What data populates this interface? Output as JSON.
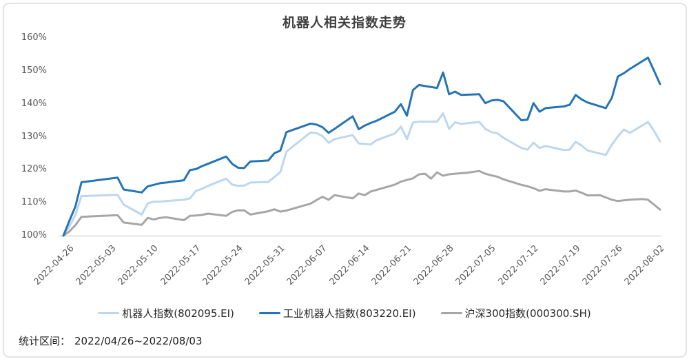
{
  "title": "机器人相关指数走势",
  "caption": {
    "label": "统计区间：",
    "range": "2022/04/26~2022/08/03"
  },
  "colors": {
    "robot_index": "#BDD7EE",
    "industrial_robot_index": "#2474B6",
    "csi300_index": "#A6A6A6",
    "axis_line": "#D9D9D9",
    "axis_text": "#595959",
    "title_text": "#404040"
  },
  "legend": [
    {
      "label": "机器人指数(802095.EI)",
      "color": "#BDD7EE"
    },
    {
      "label": "工业机器人指数(803220.EI)",
      "color": "#2474B6"
    },
    {
      "label": "沪深300指数(000300.SH)",
      "color": "#A6A6A6"
    }
  ],
  "y_axis": {
    "ticks": [
      {
        "label": "160%",
        "value": 160
      },
      {
        "label": "150%",
        "value": 150
      },
      {
        "label": "140%",
        "value": 140
      },
      {
        "label": "130%",
        "value": 130
      },
      {
        "label": "120%",
        "value": 120
      },
      {
        "label": "110%",
        "value": 110
      },
      {
        "label": "100%",
        "value": 100
      }
    ]
  },
  "x_axis": {
    "ticks": [
      {
        "label": "2022-04-26",
        "day": 0
      },
      {
        "label": "2022-05-03",
        "day": 7
      },
      {
        "label": "2022-05-10",
        "day": 14
      },
      {
        "label": "2022-05-17",
        "day": 21
      },
      {
        "label": "2022-05-24",
        "day": 28
      },
      {
        "label": "2022-05-31",
        "day": 35
      },
      {
        "label": "2022-06-07",
        "day": 42
      },
      {
        "label": "2022-06-14",
        "day": 49
      },
      {
        "label": "2022-06-21",
        "day": 56
      },
      {
        "label": "2022-06-28",
        "day": 63
      },
      {
        "label": "2022-07-05",
        "day": 70
      },
      {
        "label": "2022-07-12",
        "day": 77
      },
      {
        "label": "2022-07-19",
        "day": 84
      },
      {
        "label": "2022-07-26",
        "day": 91
      },
      {
        "label": "2022-08-02",
        "day": 98
      }
    ]
  },
  "chart_data": {
    "type": "line",
    "title": "机器人相关指数走势",
    "x_unit": "calendar days since 2022-04-26 (last point 2022-08-03 = day 99)",
    "x_range": [
      0,
      99
    ],
    "ylim": [
      100,
      160
    ],
    "y_unit": "percent of 2022-04-26 value",
    "grid": false,
    "legend_position": "bottom",
    "series": [
      {
        "name": "机器人指数(802095.EI)",
        "color": "#BDD7EE",
        "points": [
          [
            0,
            100
          ],
          [
            1,
            102.8
          ],
          [
            2,
            106.3
          ],
          [
            3,
            112.0
          ],
          [
            9,
            112.4
          ],
          [
            10,
            109.4
          ],
          [
            13,
            106.4
          ],
          [
            14,
            109.8
          ],
          [
            15,
            110.3
          ],
          [
            16,
            110.3
          ],
          [
            17,
            110.5
          ],
          [
            20,
            110.9
          ],
          [
            21,
            111.3
          ],
          [
            22,
            113.6
          ],
          [
            23,
            114.2
          ],
          [
            24,
            115.1
          ],
          [
            27,
            117.3
          ],
          [
            28,
            115.5
          ],
          [
            29,
            115.1
          ],
          [
            30,
            115.2
          ],
          [
            31,
            116.1
          ],
          [
            34,
            116.3
          ],
          [
            35,
            117.8
          ],
          [
            36,
            119.3
          ],
          [
            37,
            125.5
          ],
          [
            41,
            131.3
          ],
          [
            42,
            131.1
          ],
          [
            43,
            130.2
          ],
          [
            44,
            128.2
          ],
          [
            45,
            129.3
          ],
          [
            48,
            130.5
          ],
          [
            49,
            128.0
          ],
          [
            50,
            127.8
          ],
          [
            51,
            127.7
          ],
          [
            52,
            129.0
          ],
          [
            55,
            131.0
          ],
          [
            56,
            133.1
          ],
          [
            57,
            129.3
          ],
          [
            58,
            134.3
          ],
          [
            59,
            134.6
          ],
          [
            62,
            134.6
          ],
          [
            63,
            137.1
          ],
          [
            64,
            132.4
          ],
          [
            65,
            134.4
          ],
          [
            66,
            133.9
          ],
          [
            69,
            134.5
          ],
          [
            70,
            132.4
          ],
          [
            71,
            131.4
          ],
          [
            72,
            131.1
          ],
          [
            73,
            129.7
          ],
          [
            76,
            126.6
          ],
          [
            77,
            126.1
          ],
          [
            78,
            128.2
          ],
          [
            79,
            126.6
          ],
          [
            80,
            127.2
          ],
          [
            83,
            126.0
          ],
          [
            84,
            126.1
          ],
          [
            85,
            128.5
          ],
          [
            86,
            127.3
          ],
          [
            87,
            125.8
          ],
          [
            90,
            124.5
          ],
          [
            91,
            127.6
          ],
          [
            92,
            130.1
          ],
          [
            93,
            132.2
          ],
          [
            94,
            131.2
          ],
          [
            97,
            134.5
          ],
          [
            98,
            131.8
          ],
          [
            99,
            128.6
          ]
        ]
      },
      {
        "name": "工业机器人指数(803220.EI)",
        "color": "#2474B6",
        "points": [
          [
            0,
            100
          ],
          [
            1,
            104.5
          ],
          [
            2,
            108.9
          ],
          [
            3,
            116.2
          ],
          [
            9,
            117.6
          ],
          [
            10,
            114.0
          ],
          [
            13,
            113.1
          ],
          [
            14,
            115.0
          ],
          [
            15,
            115.4
          ],
          [
            16,
            115.9
          ],
          [
            17,
            116.1
          ],
          [
            20,
            116.8
          ],
          [
            21,
            119.9
          ],
          [
            22,
            120.2
          ],
          [
            23,
            121.1
          ],
          [
            24,
            121.8
          ],
          [
            27,
            124.0
          ],
          [
            28,
            121.8
          ],
          [
            29,
            120.6
          ],
          [
            30,
            120.5
          ],
          [
            31,
            122.5
          ],
          [
            34,
            122.8
          ],
          [
            35,
            125.0
          ],
          [
            36,
            125.8
          ],
          [
            37,
            131.4
          ],
          [
            41,
            134.0
          ],
          [
            42,
            133.7
          ],
          [
            43,
            132.9
          ],
          [
            44,
            131.2
          ],
          [
            45,
            132.4
          ],
          [
            48,
            136.2
          ],
          [
            49,
            132.3
          ],
          [
            50,
            133.4
          ],
          [
            51,
            134.2
          ],
          [
            52,
            134.9
          ],
          [
            55,
            137.6
          ],
          [
            56,
            139.9
          ],
          [
            57,
            136.4
          ],
          [
            58,
            144.2
          ],
          [
            59,
            145.7
          ],
          [
            62,
            144.8
          ],
          [
            63,
            149.5
          ],
          [
            64,
            142.9
          ],
          [
            65,
            143.7
          ],
          [
            66,
            142.7
          ],
          [
            69,
            142.9
          ],
          [
            70,
            140.2
          ],
          [
            71,
            141.0
          ],
          [
            72,
            141.2
          ],
          [
            73,
            140.8
          ],
          [
            76,
            135.0
          ],
          [
            77,
            135.2
          ],
          [
            78,
            140.2
          ],
          [
            79,
            137.6
          ],
          [
            80,
            138.7
          ],
          [
            83,
            139.2
          ],
          [
            84,
            139.7
          ],
          [
            85,
            142.7
          ],
          [
            86,
            141.3
          ],
          [
            87,
            140.4
          ],
          [
            90,
            138.7
          ],
          [
            91,
            141.8
          ],
          [
            92,
            148.3
          ],
          [
            93,
            149.3
          ],
          [
            94,
            150.6
          ],
          [
            97,
            154.0
          ],
          [
            98,
            150.0
          ],
          [
            99,
            146.0
          ]
        ]
      },
      {
        "name": "沪深300指数(000300.SH)",
        "color": "#A6A6A6",
        "points": [
          [
            0,
            100
          ],
          [
            1,
            101.3
          ],
          [
            2,
            103.2
          ],
          [
            3,
            105.7
          ],
          [
            9,
            106.2
          ],
          [
            10,
            104.0
          ],
          [
            13,
            103.3
          ],
          [
            14,
            105.4
          ],
          [
            15,
            104.9
          ],
          [
            16,
            105.4
          ],
          [
            17,
            105.6
          ],
          [
            20,
            104.7
          ],
          [
            21,
            106.0
          ],
          [
            22,
            106.1
          ],
          [
            23,
            106.3
          ],
          [
            24,
            106.7
          ],
          [
            27,
            106.0
          ],
          [
            28,
            107.2
          ],
          [
            29,
            107.7
          ],
          [
            30,
            107.7
          ],
          [
            31,
            106.4
          ],
          [
            34,
            107.4
          ],
          [
            35,
            108.0
          ],
          [
            36,
            107.3
          ],
          [
            37,
            107.6
          ],
          [
            41,
            109.7
          ],
          [
            42,
            110.8
          ],
          [
            43,
            111.8
          ],
          [
            44,
            110.9
          ],
          [
            45,
            112.3
          ],
          [
            48,
            111.3
          ],
          [
            49,
            112.8
          ],
          [
            50,
            112.3
          ],
          [
            51,
            113.4
          ],
          [
            52,
            113.9
          ],
          [
            55,
            115.5
          ],
          [
            56,
            116.4
          ],
          [
            57,
            116.9
          ],
          [
            58,
            117.4
          ],
          [
            59,
            118.6
          ],
          [
            60,
            118.8
          ],
          [
            61,
            117.3
          ],
          [
            62,
            119.2
          ],
          [
            63,
            118.2
          ],
          [
            64,
            118.6
          ],
          [
            65,
            118.8
          ],
          [
            67,
            119.1
          ],
          [
            69,
            119.6
          ],
          [
            70,
            118.8
          ],
          [
            71,
            118.3
          ],
          [
            72,
            117.9
          ],
          [
            73,
            117.1
          ],
          [
            76,
            115.4
          ],
          [
            77,
            115.0
          ],
          [
            78,
            114.4
          ],
          [
            79,
            113.6
          ],
          [
            80,
            114.1
          ],
          [
            83,
            113.4
          ],
          [
            84,
            113.4
          ],
          [
            85,
            113.7
          ],
          [
            86,
            113.0
          ],
          [
            87,
            112.2
          ],
          [
            89,
            112.3
          ],
          [
            90,
            111.6
          ],
          [
            91,
            110.9
          ],
          [
            92,
            110.5
          ],
          [
            93,
            110.7
          ],
          [
            94,
            110.9
          ],
          [
            96,
            111.1
          ],
          [
            97,
            110.9
          ],
          [
            98,
            109.4
          ],
          [
            99,
            107.9
          ]
        ]
      }
    ]
  }
}
